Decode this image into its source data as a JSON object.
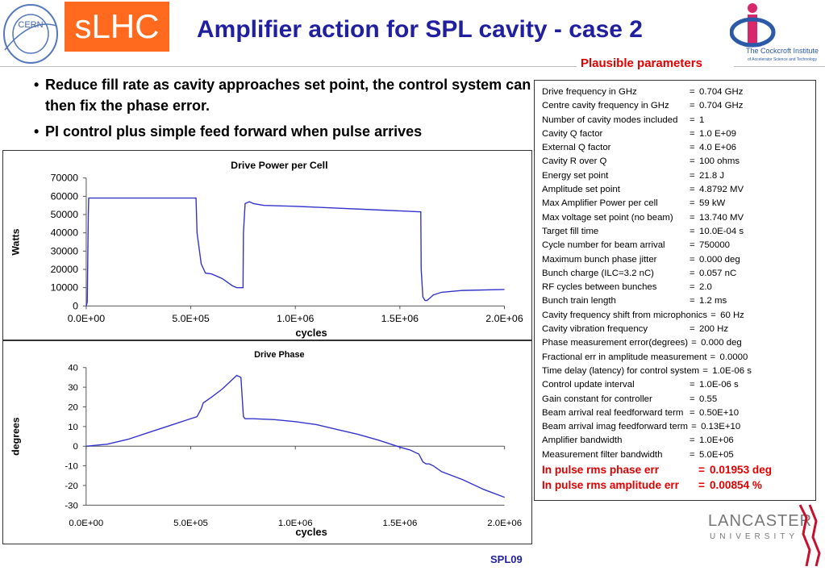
{
  "header": {
    "cern_logo_text": "CERN",
    "project_badge": "sLHC",
    "title": "Amplifier action for SPL cavity - case 2",
    "institute_logo_text": "The Cockcroft Institute",
    "institute_logo_subtext": "of Accelerator Science and Technology",
    "subtitle": "Plausible parameters"
  },
  "bullets": [
    "Reduce fill rate as cavity approaches set point, the control system can then fix the phase error.",
    "PI control plus simple feed forward when pulse arrives"
  ],
  "chart_data": [
    {
      "type": "line",
      "title": "Drive Power per Cell",
      "xlabel": "cycles",
      "ylabel": "Watts",
      "xlim": [
        0,
        2000000
      ],
      "ylim": [
        0,
        70000
      ],
      "x_ticks": [
        "0.0E+00",
        "5.0E+05",
        "1.0E+06",
        "1.5E+06",
        "2.0E+06"
      ],
      "y_ticks": [
        "0",
        "10000",
        "20000",
        "30000",
        "40000",
        "50000",
        "60000",
        "70000"
      ],
      "grid": false,
      "color": "#3333cc",
      "series": [
        {
          "x": [
            0,
            5000,
            10000,
            12000,
            100000,
            300000,
            525000,
            530000,
            550000,
            570000,
            600000,
            650000,
            700000,
            720000,
            750000,
            752000,
            760000,
            780000,
            800000,
            850000,
            1000000,
            1200000,
            1400000,
            1600000,
            1602000,
            1610000,
            1620000,
            1630000,
            1640000,
            1660000,
            1700000,
            1800000,
            2000000
          ],
          "y": [
            0,
            2000,
            50000,
            59000,
            59000,
            59000,
            59000,
            40000,
            23000,
            18000,
            17500,
            15000,
            11000,
            10000,
            10000,
            40000,
            56000,
            57000,
            56000,
            55000,
            54500,
            53500,
            52500,
            51500,
            20000,
            5000,
            3000,
            3000,
            4000,
            6000,
            7500,
            8500,
            9000
          ]
        }
      ]
    },
    {
      "type": "line",
      "title": "Drive Phase",
      "xlabel": "cycles",
      "ylabel": "degrees",
      "xlim": [
        0,
        2000000
      ],
      "ylim": [
        -30,
        40
      ],
      "x_ticks": [
        "0.0E+00",
        "5.0E+05",
        "1.0E+06",
        "1.5E+06",
        "2.0E+06"
      ],
      "y_ticks": [
        "-30",
        "-20",
        "-10",
        "0",
        "10",
        "20",
        "30",
        "40"
      ],
      "grid": false,
      "color": "#3333cc",
      "series": [
        {
          "x": [
            0,
            100000,
            200000,
            300000,
            400000,
            500000,
            530000,
            550000,
            560000,
            600000,
            650000,
            700000,
            720000,
            740000,
            752000,
            760000,
            800000,
            900000,
            1000000,
            1100000,
            1200000,
            1300000,
            1400000,
            1500000,
            1550000,
            1590000,
            1610000,
            1625000,
            1640000,
            1660000,
            1700000,
            1800000,
            1900000,
            2000000
          ],
          "y": [
            0,
            1,
            3.5,
            7,
            10.5,
            14,
            15,
            19,
            22,
            25,
            29,
            34,
            36,
            35,
            15,
            14,
            14,
            13.5,
            12.5,
            11,
            8.5,
            6,
            3,
            -0.5,
            -2,
            -4,
            -8,
            -9,
            -9,
            -10,
            -13,
            -17,
            -22,
            -26
          ]
        }
      ]
    }
  ],
  "parameters": [
    {
      "label": "Drive frequency in GHz",
      "eq": "=",
      "value": "0.704 GHz"
    },
    {
      "label": "Centre cavity frequency in GHz",
      "eq": "=",
      "value": "0.704 GHz"
    },
    {
      "label": "Number of cavity modes included",
      "eq": "=",
      "value": "1"
    },
    {
      "label": "Cavity Q factor",
      "eq": "=",
      "value": "1.0 E+09"
    },
    {
      "label": "External Q factor",
      "eq": "=",
      "value": "4.0 E+06"
    },
    {
      "label": "Cavity R over Q",
      "eq": "=",
      "value": "100 ohms"
    },
    {
      "label": "Energy set point",
      "eq": "=",
      "value": "21.8 J"
    },
    {
      "label": "Amplitude set point",
      "eq": "=",
      "value": "4.8792 MV"
    },
    {
      "label": "Max Amplifier Power per cell",
      "eq": "=",
      "value": "59 kW"
    },
    {
      "label": "Max voltage set point (no beam)",
      "eq": "=",
      "value": "13.740 MV"
    },
    {
      "label": "Target fill time",
      "eq": "=",
      "value": "10.0E-04 s"
    },
    {
      "label": "Cycle number for beam arrival",
      "eq": "=",
      "value": "750000"
    },
    {
      "label": "Maximum bunch phase jitter",
      "eq": "=",
      "value": "0.000 deg"
    },
    {
      "label": "Bunch charge (ILC=3.2 nC)",
      "eq": "=",
      "value": "0.057 nC"
    },
    {
      "label": "RF cycles between bunches",
      "eq": "=",
      "value": "2.0"
    },
    {
      "label": "Bunch train length",
      "eq": "=",
      "value": "1.2 ms"
    },
    {
      "label": "Cavity frequency shift from microphonics",
      "eq": "=",
      "value": "60 Hz"
    },
    {
      "label": "Cavity vibration frequency",
      "eq": "=",
      "value": "200 Hz"
    },
    {
      "label": "Phase measurement error(degrees)",
      "eq": "=",
      "value": "0.000 deg"
    },
    {
      "label": "Fractional err in amplitude measurement",
      "eq": "=",
      "value": "0.0000"
    },
    {
      "label": "Time delay (latency) for control system",
      "eq": "=",
      "value": "1.0E-06 s"
    },
    {
      "label": "Control update interval",
      "eq": "=",
      "value": "1.0E-06 s"
    },
    {
      "label": "Gain constant for controller",
      "eq": "=",
      "value": "0.55"
    },
    {
      "label": "Beam arrival real feedforward term",
      "eq": "=",
      "value": "0.50E+10"
    },
    {
      "label": "Beam arrival imag feedforward term",
      "eq": "=",
      "value": "0.13E+10"
    },
    {
      "label": "Amplifier bandwidth",
      "eq": "=",
      "value": "1.0E+06"
    },
    {
      "label": "Measurement filter bandwidth",
      "eq": "=",
      "value": "5.0E+05"
    }
  ],
  "results": [
    {
      "label": "In pulse rms phase err",
      "eq": "=",
      "value": "0.01953 deg"
    },
    {
      "label": "In pulse rms amplitude err",
      "eq": "=",
      "value": "0.00854 %"
    }
  ],
  "footer": {
    "university_logo_text": "LANCASTER",
    "university_logo_subtext": "UNIVERSITY",
    "slide_tag": "SPL09"
  },
  "colors": {
    "title": "#1f1fa0",
    "badge": "#ff6a1f",
    "highlight": "#e00000",
    "series": "#3333cc"
  }
}
